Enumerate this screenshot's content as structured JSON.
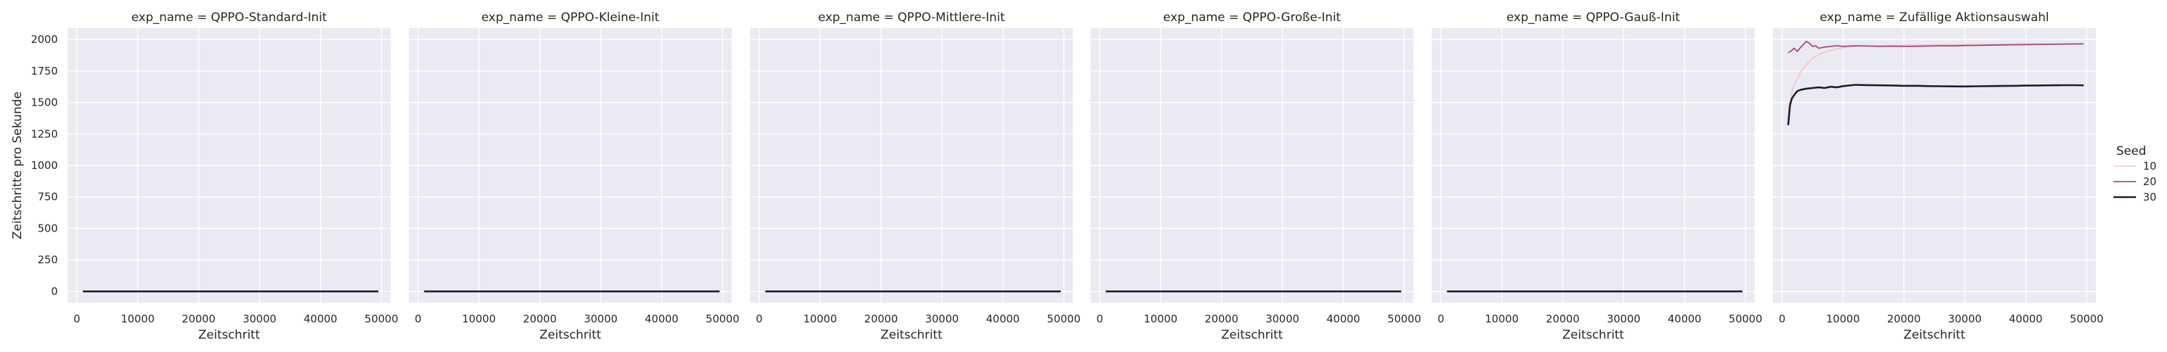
{
  "chart_data": {
    "type": "line",
    "facet_label_prefix": "exp_name = ",
    "panels": [
      {
        "title": "QPPO-Standard-Init",
        "series": [
          {
            "name": "10",
            "x": [
              1000,
              5000,
              10000,
              20000,
              30000,
              40000,
              49500
            ],
            "y": [
              0,
              0,
              0,
              0,
              0,
              0,
              0
            ]
          },
          {
            "name": "20",
            "x": [
              1000,
              5000,
              10000,
              20000,
              30000,
              40000,
              49500
            ],
            "y": [
              0,
              0,
              0,
              0,
              0,
              0,
              0
            ]
          },
          {
            "name": "30",
            "x": [
              1000,
              5000,
              10000,
              20000,
              30000,
              40000,
              49500
            ],
            "y": [
              0,
              0,
              0,
              0,
              0,
              0,
              0
            ]
          }
        ]
      },
      {
        "title": "QPPO-Kleine-Init",
        "series": [
          {
            "name": "10",
            "x": [
              1000,
              5000,
              10000,
              20000,
              30000,
              40000,
              49500
            ],
            "y": [
              0,
              0,
              0,
              0,
              0,
              0,
              0
            ]
          },
          {
            "name": "20",
            "x": [
              1000,
              5000,
              10000,
              20000,
              30000,
              40000,
              49500
            ],
            "y": [
              0,
              0,
              0,
              0,
              0,
              0,
              0
            ]
          },
          {
            "name": "30",
            "x": [
              1000,
              5000,
              10000,
              20000,
              30000,
              40000,
              49500
            ],
            "y": [
              0,
              0,
              0,
              0,
              0,
              0,
              0
            ]
          }
        ]
      },
      {
        "title": "QPPO-Mittlere-Init",
        "series": [
          {
            "name": "10",
            "x": [
              1000,
              5000,
              10000,
              20000,
              30000,
              40000,
              49500
            ],
            "y": [
              0,
              0,
              0,
              0,
              0,
              0,
              0
            ]
          },
          {
            "name": "20",
            "x": [
              1000,
              5000,
              10000,
              20000,
              30000,
              40000,
              49500
            ],
            "y": [
              0,
              0,
              0,
              0,
              0,
              0,
              0
            ]
          },
          {
            "name": "30",
            "x": [
              1000,
              5000,
              10000,
              20000,
              30000,
              40000,
              49500
            ],
            "y": [
              0,
              0,
              0,
              0,
              0,
              0,
              0
            ]
          }
        ]
      },
      {
        "title": "QPPO-Große-Init",
        "series": [
          {
            "name": "10",
            "x": [
              1000,
              5000,
              10000,
              20000,
              30000,
              40000,
              49500
            ],
            "y": [
              0,
              0,
              0,
              0,
              0,
              0,
              0
            ]
          },
          {
            "name": "20",
            "x": [
              1000,
              5000,
              10000,
              20000,
              30000,
              40000,
              49500
            ],
            "y": [
              0,
              0,
              0,
              0,
              0,
              0,
              0
            ]
          },
          {
            "name": "30",
            "x": [
              1000,
              5000,
              10000,
              20000,
              30000,
              40000,
              49500
            ],
            "y": [
              0,
              0,
              0,
              0,
              0,
              0,
              0
            ]
          }
        ]
      },
      {
        "title": "QPPO-Gauß-Init",
        "series": [
          {
            "name": "10",
            "x": [
              1000,
              5000,
              10000,
              20000,
              30000,
              40000,
              49500
            ],
            "y": [
              0,
              0,
              0,
              0,
              0,
              0,
              0
            ]
          },
          {
            "name": "20",
            "x": [
              1000,
              5000,
              10000,
              20000,
              30000,
              40000,
              49500
            ],
            "y": [
              0,
              0,
              0,
              0,
              0,
              0,
              0
            ]
          },
          {
            "name": "30",
            "x": [
              1000,
              5000,
              10000,
              20000,
              30000,
              40000,
              49500
            ],
            "y": [
              0,
              0,
              0,
              0,
              0,
              0,
              0
            ]
          }
        ]
      },
      {
        "title": "Zufällige Aktionsauswahl",
        "series": [
          {
            "name": "10",
            "x": [
              1000,
              1500,
              2000,
              3000,
              4000,
              5000,
              6000,
              7000,
              8000,
              10000,
              12000,
              15000,
              20000,
              25000,
              30000,
              35000,
              40000,
              45000,
              49500
            ],
            "y": [
              1400,
              1560,
              1640,
              1740,
              1800,
              1850,
              1880,
              1900,
              1915,
              1935,
              1945,
              1950,
              1955,
              1958,
              1960,
              1962,
              1965,
              1966,
              1968
            ]
          },
          {
            "name": "20",
            "x": [
              1000,
              1500,
              2000,
              2500,
              3000,
              3500,
              4000,
              4500,
              5000,
              5500,
              6000,
              7000,
              8000,
              9000,
              10000,
              12000,
              14000,
              16000,
              18000,
              20000,
              22000,
              24000,
              26000,
              28000,
              30000,
              32000,
              34000,
              36000,
              38000,
              40000,
              42000,
              44000,
              46000,
              48000,
              49500
            ],
            "y": [
              1895,
              1910,
              1930,
              1905,
              1935,
              1960,
              1985,
              1970,
              1945,
              1950,
              1930,
              1940,
              1945,
              1950,
              1945,
              1950,
              1948,
              1945,
              1947,
              1945,
              1946,
              1948,
              1950,
              1949,
              1952,
              1953,
              1955,
              1957,
              1958,
              1960,
              1961,
              1962,
              1963,
              1964,
              1965
            ]
          },
          {
            "name": "30",
            "x": [
              1000,
              1300,
              1600,
              2000,
              2500,
              3000,
              4000,
              5000,
              6000,
              7000,
              8000,
              9000,
              10000,
              12000,
              14000,
              16000,
              18000,
              20000,
              22000,
              24000,
              26000,
              28000,
              30000,
              32000,
              34000,
              36000,
              38000,
              40000,
              42000,
              44000,
              46000,
              48000,
              49500
            ],
            "y": [
              1320,
              1480,
              1530,
              1560,
              1590,
              1600,
              1610,
              1615,
              1620,
              1615,
              1625,
              1620,
              1630,
              1640,
              1638,
              1636,
              1635,
              1632,
              1633,
              1630,
              1629,
              1628,
              1627,
              1629,
              1630,
              1631,
              1632,
              1634,
              1635,
              1636,
              1637,
              1637,
              1636
            ]
          }
        ]
      }
    ],
    "xlabel": "Zeitschritt",
    "ylabel": "Zeitschritte pro Sekunde",
    "xlim": [
      -1500,
      51500
    ],
    "ylim": [
      -90,
      2090
    ],
    "xticks": [
      0,
      10000,
      20000,
      30000,
      40000,
      50000
    ],
    "xtick_labels": [
      "0",
      "10000",
      "20000",
      "30000",
      "40000",
      "50000"
    ],
    "yticks": [
      0,
      250,
      500,
      750,
      1000,
      1250,
      1500,
      1750,
      2000
    ],
    "ytick_labels": [
      "0",
      "250",
      "500",
      "750",
      "1000",
      "1250",
      "1500",
      "1750",
      "2000"
    ],
    "grid": true,
    "legend": {
      "title": "Seed",
      "entries": [
        "10",
        "20",
        "30"
      ],
      "placement": "right"
    },
    "colors": {
      "seed_10": "#f0c6c3",
      "seed_20": "#a8487d",
      "seed_30": "#1e1836",
      "panel_background": "#eaeaf2",
      "grid": "#ffffff",
      "text": "#262626"
    }
  }
}
